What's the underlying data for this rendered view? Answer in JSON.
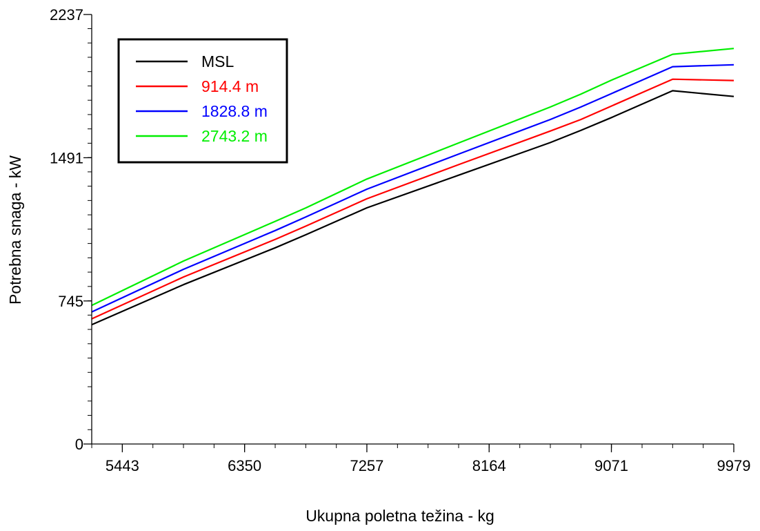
{
  "chart_data": {
    "type": "line",
    "title": "",
    "xlabel": "Ukupna poletna težina - kg",
    "ylabel": "Potrebna snaga - kW",
    "xlim": [
      5216,
      9979
    ],
    "ylim": [
      0,
      2237
    ],
    "x_ticks": [
      5443,
      6350,
      7257,
      8164,
      9071,
      9979
    ],
    "x_tick_labels": [
      "5443",
      "6350",
      "7257",
      "8164",
      "9071",
      "9979"
    ],
    "y_ticks": [
      0,
      745,
      1491,
      2237
    ],
    "y_tick_labels": [
      "0",
      "745",
      "1491",
      "2237"
    ],
    "x_minor_step": 226.8,
    "y_minor_step": 74.6,
    "grid": false,
    "legend_position": "top-left",
    "x": [
      5216,
      5897,
      6578,
      6805,
      7257,
      7938,
      8617,
      8844,
      9071,
      9525,
      9979
    ],
    "series": [
      {
        "name": "MSL",
        "color": "#000000",
        "values": [
          621,
          830,
          1022,
          1090,
          1230,
          1400,
          1570,
          1633,
          1700,
          1840,
          1810
        ]
      },
      {
        "name": "914.4 m",
        "color": "#ff0000",
        "values": [
          652,
          870,
          1066,
          1135,
          1277,
          1455,
          1630,
          1690,
          1760,
          1900,
          1893
        ]
      },
      {
        "name": "1828.8 m",
        "color": "#0000ff",
        "values": [
          688,
          910,
          1112,
          1183,
          1327,
          1510,
          1690,
          1755,
          1825,
          1965,
          1975
        ]
      },
      {
        "name": "2743.2 m",
        "color": "#00ee00",
        "values": [
          722,
          953,
          1160,
          1230,
          1380,
          1568,
          1755,
          1822,
          1895,
          2030,
          2060
        ]
      }
    ]
  }
}
